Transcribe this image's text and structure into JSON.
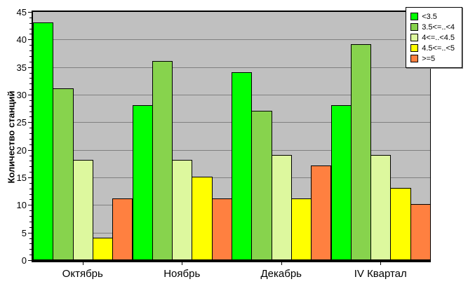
{
  "chart_data": {
    "type": "bar",
    "title": "",
    "xlabel": "",
    "ylabel": "Количество станций",
    "ylim": [
      0,
      45
    ],
    "ytick_step": 5,
    "grid": true,
    "plot_bg_color": "#C0C0C0",
    "grid_color": "#808080",
    "legend_position": "top-right",
    "categories": [
      "Октябрь",
      "Ноябрь",
      "Декабрь",
      "IV Квартал"
    ],
    "series": [
      {
        "name": "<3.5",
        "color": "#00FF00",
        "values": [
          43,
          28,
          34,
          28
        ]
      },
      {
        "name": "3.5<=..<4",
        "color": "#87D34D",
        "values": [
          31,
          36,
          27,
          39
        ]
      },
      {
        "name": "4<=..<4.5",
        "color": "#DDF89E",
        "values": [
          18,
          18,
          19,
          19
        ]
      },
      {
        "name": "4.5<=..<5",
        "color": "#FFFF00",
        "values": [
          4,
          15,
          11,
          13
        ]
      },
      {
        "name": ">=5",
        "color": "#FF8040",
        "values": [
          11,
          11,
          17,
          10
        ]
      }
    ]
  }
}
